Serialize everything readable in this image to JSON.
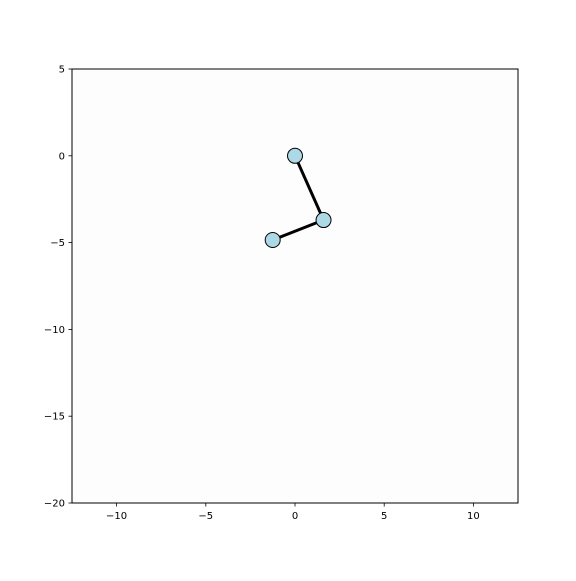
{
  "chart_data": {
    "type": "scatter",
    "title": "",
    "xlabel": "",
    "ylabel": "",
    "xlim": [
      -12.5,
      12.5
    ],
    "ylim": [
      -20,
      5
    ],
    "grid": false,
    "x_ticks": [
      -10,
      -5,
      0,
      5,
      10
    ],
    "y_ticks": [
      5,
      0,
      -5,
      -10,
      -15,
      -20
    ],
    "x_tick_labels": [
      "−10",
      "−5",
      "0",
      "5",
      "10"
    ],
    "y_tick_labels": [
      "5",
      "0",
      "−5",
      "−10",
      "−15",
      "−20"
    ],
    "nodes": [
      {
        "x": 0.0,
        "y": 0.0
      },
      {
        "x": 1.6,
        "y": -3.7
      },
      {
        "x": -1.25,
        "y": -4.85
      }
    ],
    "links": [
      [
        0,
        1
      ],
      [
        1,
        2
      ]
    ],
    "colors": {
      "node_fill": "#add8e6",
      "node_edge": "#000000",
      "link": "#000000",
      "plot_background": "#fdfdfd",
      "axes_frame": "#000000"
    }
  }
}
